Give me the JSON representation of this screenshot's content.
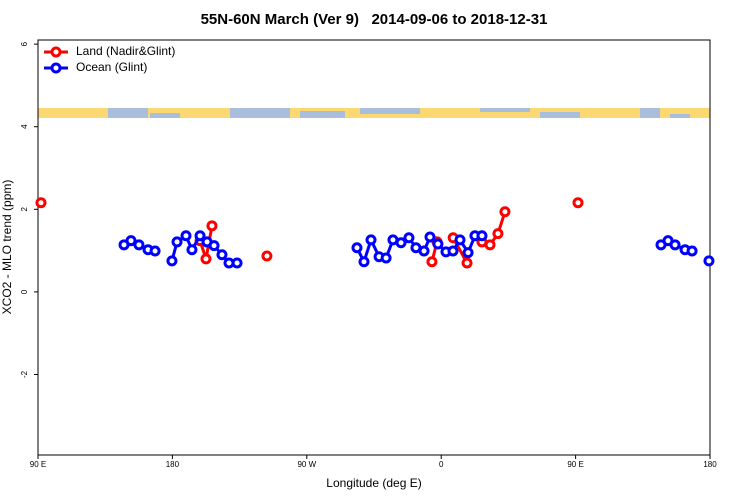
{
  "chart_data": {
    "type": "line",
    "title": "55N-60N March (Ver 9)   2014-09-06 to 2018-12-31",
    "xlabel": "Longitude (deg E)",
    "ylabel": "XCO2 - MLO trend (ppm)",
    "xlim": [
      90,
      540
    ],
    "xticks": [
      {
        "value": 90,
        "label": "90 E"
      },
      {
        "value": 180,
        "label": "180"
      },
      {
        "value": 270,
        "label": "90 W"
      },
      {
        "value": 360,
        "label": "0"
      },
      {
        "value": 450,
        "label": "90 E"
      },
      {
        "value": 540,
        "label": "180"
      }
    ],
    "ylim": [
      -3.95,
      6.1
    ],
    "yticks": [
      -2,
      0,
      2,
      4,
      6
    ],
    "legend": "upper left",
    "series": [
      {
        "name": "Land (Nadir&Glint)",
        "color": "#ff0000",
        "x": [
          92,
          null,
          198.5,
          202.5,
          206.5,
          null,
          243.3,
          null,
          353.8,
          357.2,
          null,
          368,
          377.3,
          null,
          387.3,
          392.7,
          398,
          402.7,
          null,
          451.6
        ],
        "values": [
          2.16,
          null,
          1.24,
          0.8,
          1.6,
          null,
          0.87,
          null,
          0.73,
          1.21,
          null,
          1.31,
          0.7,
          null,
          1.21,
          1.14,
          1.41,
          1.94,
          null,
          2.16
        ]
      },
      {
        "name": "Ocean (Glint)",
        "color": "#0000ff",
        "x": [
          147.6,
          152.3,
          157.6,
          163.7,
          168.4,
          null,
          179.7,
          183.1,
          189.1,
          193.1,
          198.5,
          203.2,
          207.9,
          213.2,
          217.9,
          223.3,
          null,
          303.6,
          308.3,
          313,
          318.4,
          323.1,
          327.7,
          333.1,
          338.4,
          343.1,
          348.5,
          352.5,
          357.8,
          363.2,
          367.9,
          372.6,
          378,
          382.6,
          387.3,
          null,
          507.2,
          511.9,
          516.6,
          523.3,
          528,
          null,
          539.3
        ],
        "values": [
          1.14,
          1.24,
          1.14,
          1.02,
          0.99,
          null,
          0.75,
          1.21,
          1.36,
          1.02,
          1.36,
          1.21,
          1.12,
          0.9,
          0.7,
          0.7,
          null,
          1.07,
          0.73,
          1.26,
          0.85,
          0.82,
          1.26,
          1.19,
          1.31,
          1.07,
          0.99,
          1.33,
          1.16,
          0.97,
          0.99,
          1.26,
          0.95,
          1.36,
          1.36,
          null,
          1.14,
          1.24,
          1.14,
          1.02,
          0.99,
          null,
          0.75
        ]
      }
    ]
  }
}
